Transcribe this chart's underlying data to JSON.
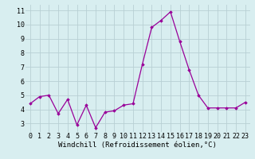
{
  "x": [
    0,
    1,
    2,
    3,
    4,
    5,
    6,
    7,
    8,
    9,
    10,
    11,
    12,
    13,
    14,
    15,
    16,
    17,
    18,
    19,
    20,
    21,
    22,
    23
  ],
  "y": [
    4.4,
    4.9,
    5.0,
    3.7,
    4.7,
    2.9,
    4.3,
    2.7,
    3.8,
    3.9,
    4.3,
    4.4,
    7.2,
    9.8,
    10.3,
    10.9,
    8.8,
    6.8,
    5.0,
    4.1,
    4.1,
    4.1,
    4.1,
    4.5
  ],
  "line_color": "#990099",
  "marker": "D",
  "marker_size": 1.8,
  "linewidth": 0.9,
  "xlabel": "Windchill (Refroidissement éolien,°C)",
  "xlabel_fontsize": 6.5,
  "ylabel_ticks": [
    3,
    4,
    5,
    6,
    7,
    8,
    9,
    10,
    11
  ],
  "xlim": [
    -0.5,
    23.5
  ],
  "ylim": [
    2.4,
    11.4
  ],
  "bg_color": "#d8eef0",
  "grid_color": "#b8d0d4",
  "tick_fontsize": 6.0,
  "xtick_labels": [
    "0",
    "1",
    "2",
    "3",
    "4",
    "5",
    "6",
    "7",
    "8",
    "9",
    "10",
    "11",
    "12",
    "13",
    "14",
    "15",
    "16",
    "17",
    "18",
    "19",
    "20",
    "21",
    "22",
    "23"
  ]
}
